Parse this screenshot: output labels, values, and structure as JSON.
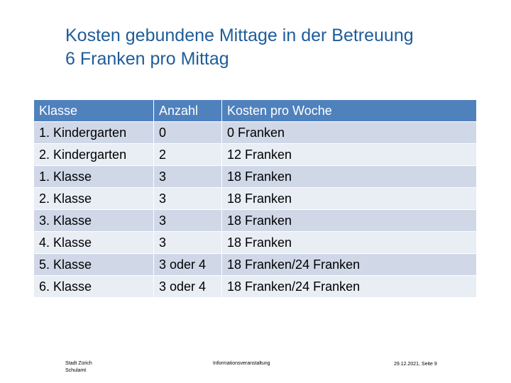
{
  "header": {
    "title": [
      "Kosten gebundene Mittage in der Betreuung",
      "6 Franken pro Mittag"
    ]
  },
  "table": {
    "columns": [
      "Klasse",
      "Anzahl",
      "Kosten pro Woche"
    ],
    "rows": [
      [
        "1. Kindergarten",
        "0",
        "0 Franken"
      ],
      [
        "2. Kindergarten",
        "2",
        "12 Franken"
      ],
      [
        "1. Klasse",
        "3",
        "18 Franken"
      ],
      [
        "2. Klasse",
        "3",
        "18 Franken"
      ],
      [
        "3. Klasse",
        "3",
        "18 Franken"
      ],
      [
        "4. Klasse",
        "3",
        "18 Franken"
      ],
      [
        "5. Klasse",
        "3 oder 4",
        "18 Franken/24 Franken"
      ],
      [
        "6. Klasse",
        "3 oder 4",
        "18 Franken/24 Franken"
      ]
    ]
  },
  "footer": {
    "organization": [
      "Stadt Zürich",
      "Schulamt"
    ],
    "event": "Informationsveranstaltung",
    "date": "29.12.2021, Seite 9"
  }
}
